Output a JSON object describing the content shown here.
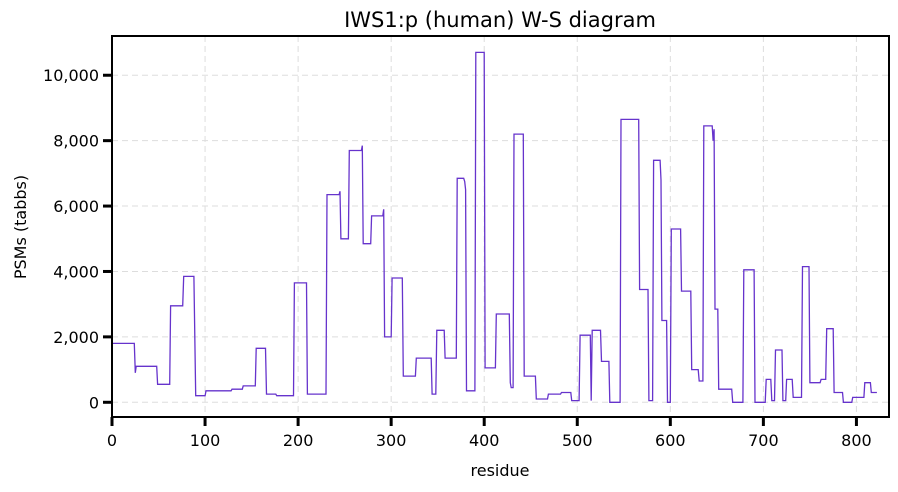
{
  "chart_data": {
    "type": "line",
    "title": "IWS1:p (human) W-S diagram",
    "xlabel": "residue",
    "ylabel": "PSMs (tabbs)",
    "xlim": [
      0,
      835
    ],
    "ylim": [
      -450,
      11200
    ],
    "x_ticks": [
      0,
      100,
      200,
      300,
      400,
      500,
      600,
      700,
      800
    ],
    "x_tick_labels": [
      "0",
      "100",
      "200",
      "300",
      "400",
      "500",
      "600",
      "700",
      "800"
    ],
    "y_ticks": [
      0,
      2000,
      4000,
      6000,
      8000,
      10000
    ],
    "y_tick_labels": [
      "0",
      "2,000",
      "4,000",
      "6,000",
      "8,000",
      "10,000"
    ],
    "grid": true,
    "legend": "none",
    "series": [
      {
        "color": "#6633cc",
        "points": [
          [
            0,
            1800
          ],
          [
            24,
            1800
          ],
          [
            25,
            900
          ],
          [
            26,
            1100
          ],
          [
            48,
            1100
          ],
          [
            49,
            550
          ],
          [
            62,
            550
          ],
          [
            63,
            2950
          ],
          [
            76,
            2950
          ],
          [
            77,
            3850
          ],
          [
            88,
            3850
          ],
          [
            90,
            200
          ],
          [
            100,
            200
          ],
          [
            101,
            350
          ],
          [
            128,
            350
          ],
          [
            129,
            400
          ],
          [
            140,
            400
          ],
          [
            141,
            500
          ],
          [
            154,
            500
          ],
          [
            155,
            1650
          ],
          [
            165,
            1650
          ],
          [
            166,
            250
          ],
          [
            176,
            250
          ],
          [
            177,
            200
          ],
          [
            195,
            200
          ],
          [
            196,
            3650
          ],
          [
            209,
            3650
          ],
          [
            210,
            250
          ],
          [
            230,
            250
          ],
          [
            231,
            6350
          ],
          [
            244,
            6350
          ],
          [
            245,
            6450
          ],
          [
            246,
            5000
          ],
          [
            254,
            5000
          ],
          [
            255,
            7700
          ],
          [
            268,
            7700
          ],
          [
            269,
            7850
          ],
          [
            270,
            4850
          ],
          [
            278,
            4850
          ],
          [
            279,
            5700
          ],
          [
            291,
            5700
          ],
          [
            292,
            5900
          ],
          [
            293,
            2000
          ],
          [
            300,
            2000
          ],
          [
            301,
            3800
          ],
          [
            312,
            3800
          ],
          [
            313,
            800
          ],
          [
            326,
            800
          ],
          [
            327,
            1350
          ],
          [
            343,
            1350
          ],
          [
            344,
            250
          ],
          [
            348,
            250
          ],
          [
            349,
            2200
          ],
          [
            357,
            2200
          ],
          [
            358,
            1350
          ],
          [
            370,
            1350
          ],
          [
            371,
            6850
          ],
          [
            378,
            6850
          ],
          [
            379,
            6750
          ],
          [
            380,
            6500
          ],
          [
            381,
            350
          ],
          [
            390,
            350
          ],
          [
            391,
            10700
          ],
          [
            400,
            10700
          ],
          [
            401,
            1050
          ],
          [
            412,
            1050
          ],
          [
            413,
            2700
          ],
          [
            427,
            2700
          ],
          [
            428,
            600
          ],
          [
            429,
            450
          ],
          [
            431,
            450
          ],
          [
            432,
            8200
          ],
          [
            442,
            8200
          ],
          [
            443,
            800
          ],
          [
            455,
            800
          ],
          [
            456,
            100
          ],
          [
            468,
            100
          ],
          [
            469,
            250
          ],
          [
            482,
            250
          ],
          [
            483,
            300
          ],
          [
            493,
            300
          ],
          [
            494,
            50
          ],
          [
            502,
            50
          ],
          [
            503,
            2050
          ],
          [
            514,
            2050
          ],
          [
            515,
            50
          ],
          [
            516,
            2200
          ],
          [
            525,
            2200
          ],
          [
            526,
            1250
          ],
          [
            534,
            1250
          ],
          [
            535,
            0
          ],
          [
            546,
            0
          ],
          [
            547,
            8650
          ],
          [
            566,
            8650
          ],
          [
            567,
            3450
          ],
          [
            576,
            3450
          ],
          [
            577,
            50
          ],
          [
            581,
            50
          ],
          [
            582,
            7400
          ],
          [
            589,
            7400
          ],
          [
            590,
            6800
          ],
          [
            591,
            2500
          ],
          [
            596,
            2500
          ],
          [
            597,
            0
          ],
          [
            600,
            0
          ],
          [
            601,
            5300
          ],
          [
            611,
            5300
          ],
          [
            612,
            3400
          ],
          [
            622,
            3400
          ],
          [
            623,
            1000
          ],
          [
            630,
            1000
          ],
          [
            631,
            650
          ],
          [
            635,
            650
          ],
          [
            636,
            8450
          ],
          [
            645,
            8450
          ],
          [
            646,
            8000
          ],
          [
            647,
            8350
          ],
          [
            648,
            2850
          ],
          [
            651,
            2850
          ],
          [
            652,
            400
          ],
          [
            666,
            400
          ],
          [
            667,
            0
          ],
          [
            678,
            0
          ],
          [
            679,
            4050
          ],
          [
            690,
            4050
          ],
          [
            691,
            0
          ],
          [
            702,
            0
          ],
          [
            703,
            700
          ],
          [
            708,
            700
          ],
          [
            709,
            50
          ],
          [
            712,
            50
          ],
          [
            713,
            1600
          ],
          [
            720,
            1600
          ],
          [
            721,
            50
          ],
          [
            724,
            50
          ],
          [
            725,
            700
          ],
          [
            731,
            700
          ],
          [
            732,
            150
          ],
          [
            741,
            150
          ],
          [
            742,
            4150
          ],
          [
            749,
            4150
          ],
          [
            750,
            600
          ],
          [
            761,
            600
          ],
          [
            762,
            700
          ],
          [
            767,
            700
          ],
          [
            768,
            2250
          ],
          [
            775,
            2250
          ],
          [
            776,
            300
          ],
          [
            785,
            300
          ],
          [
            786,
            0
          ],
          [
            795,
            0
          ],
          [
            796,
            150
          ],
          [
            808,
            150
          ],
          [
            809,
            600
          ],
          [
            815,
            600
          ],
          [
            816,
            300
          ],
          [
            822,
            300
          ]
        ]
      }
    ]
  }
}
